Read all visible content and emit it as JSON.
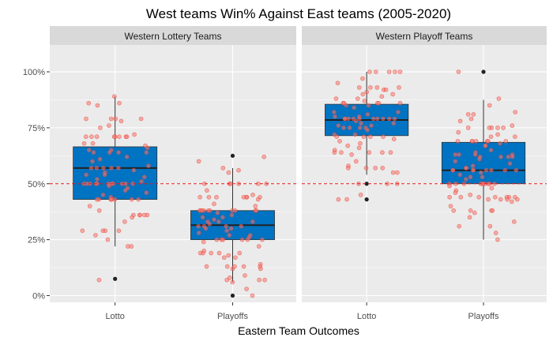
{
  "chart_data": {
    "type": "box",
    "title": "West teams Win% Against East teams (2005-2020)",
    "xlabel": "Eastern Team Outcomes",
    "ylabel": "",
    "ylim": [
      -0.03,
      1.12
    ],
    "yticks": [
      0,
      0.25,
      0.5,
      0.75,
      1.0
    ],
    "ytick_labels": [
      "0%",
      "25%",
      "50%",
      "75%",
      "100%"
    ],
    "categories": [
      "Lotto",
      "Playoffs"
    ],
    "reference_line": 0.5,
    "colors": {
      "panel_bg": "#ebebeb",
      "strip_bg": "#d9d9d9",
      "box_fill": "#0073c2",
      "point": "#f8766d",
      "ref_line": "#e41a1c",
      "grid": "#ffffff"
    },
    "panels": [
      {
        "strip_label": "Western Lottery Teams",
        "boxes": [
          {
            "category": "Lotto",
            "min": 0.22,
            "q1": 0.43,
            "median": 0.57,
            "q3": 0.665,
            "max": 0.89,
            "outliers": [
              0.075
            ],
            "points": [
              0.89,
              0.86,
              0.86,
              0.85,
              0.79,
              0.79,
              0.79,
              0.79,
              0.78,
              0.76,
              0.75,
              0.72,
              0.71,
              0.71,
              0.71,
              0.71,
              0.71,
              0.71,
              0.71,
              0.71,
              0.68,
              0.68,
              0.67,
              0.66,
              0.65,
              0.65,
              0.64,
              0.64,
              0.64,
              0.64,
              0.62,
              0.61,
              0.6,
              0.58,
              0.57,
              0.57,
              0.57,
              0.57,
              0.57,
              0.56,
              0.55,
              0.54,
              0.54,
              0.53,
              0.52,
              0.51,
              0.5,
              0.5,
              0.5,
              0.5,
              0.5,
              0.5,
              0.5,
              0.5,
              0.5,
              0.5,
              0.5,
              0.49,
              0.48,
              0.47,
              0.46,
              0.45,
              0.44,
              0.43,
              0.43,
              0.43,
              0.43,
              0.43,
              0.43,
              0.43,
              0.43,
              0.4,
              0.38,
              0.36,
              0.36,
              0.36,
              0.36,
              0.36,
              0.35,
              0.33,
              0.29,
              0.29,
              0.29,
              0.29,
              0.27,
              0.25,
              0.22,
              0.22,
              0.07
            ]
          },
          {
            "category": "Playoffs",
            "min": 0.06,
            "q1": 0.25,
            "median": 0.315,
            "q3": 0.38,
            "max": 0.57,
            "outliers": [
              0.625,
              0.0
            ],
            "points": [
              0.62,
              0.6,
              0.57,
              0.56,
              0.55,
              0.5,
              0.5,
              0.5,
              0.5,
              0.5,
              0.5,
              0.47,
              0.45,
              0.44,
              0.44,
              0.44,
              0.44,
              0.44,
              0.44,
              0.44,
              0.43,
              0.41,
              0.4,
              0.38,
              0.38,
              0.38,
              0.38,
              0.38,
              0.38,
              0.38,
              0.38,
              0.38,
              0.38,
              0.37,
              0.36,
              0.35,
              0.35,
              0.34,
              0.33,
              0.33,
              0.33,
              0.32,
              0.31,
              0.31,
              0.31,
              0.31,
              0.3,
              0.3,
              0.29,
              0.28,
              0.27,
              0.27,
              0.26,
              0.25,
              0.25,
              0.25,
              0.25,
              0.25,
              0.25,
              0.24,
              0.22,
              0.2,
              0.19,
              0.19,
              0.19,
              0.19,
              0.19,
              0.18,
              0.17,
              0.17,
              0.14,
              0.13,
              0.13,
              0.13,
              0.13,
              0.13,
              0.12,
              0.12,
              0.09,
              0.08,
              0.07,
              0.07,
              0.07,
              0.06,
              0.03,
              0.0
            ]
          }
        ]
      },
      {
        "strip_label": "Western Playoff Teams",
        "boxes": [
          {
            "category": "Lotto",
            "min": 0.54,
            "q1": 0.715,
            "median": 0.785,
            "q3": 0.855,
            "max": 1.0,
            "outliers": [
              0.5,
              0.43
            ],
            "points": [
              1.0,
              1.0,
              1.0,
              1.0,
              1.0,
              0.97,
              0.95,
              0.93,
              0.93,
              0.93,
              0.93,
              0.92,
              0.92,
              0.91,
              0.9,
              0.9,
              0.89,
              0.88,
              0.88,
              0.87,
              0.86,
              0.86,
              0.86,
              0.86,
              0.86,
              0.85,
              0.85,
              0.84,
              0.82,
              0.82,
              0.81,
              0.8,
              0.8,
              0.79,
              0.79,
              0.79,
              0.79,
              0.79,
              0.79,
              0.79,
              0.79,
              0.79,
              0.79,
              0.78,
              0.77,
              0.77,
              0.76,
              0.76,
              0.75,
              0.75,
              0.75,
              0.75,
              0.74,
              0.72,
              0.72,
              0.71,
              0.71,
              0.71,
              0.71,
              0.7,
              0.69,
              0.68,
              0.67,
              0.66,
              0.65,
              0.64,
              0.64,
              0.64,
              0.64,
              0.64,
              0.63,
              0.6,
              0.58,
              0.57,
              0.57,
              0.57,
              0.57,
              0.55,
              0.55,
              0.5,
              0.5,
              0.5,
              0.45,
              0.43,
              0.43
            ]
          },
          {
            "category": "Playoffs",
            "min": 0.25,
            "q1": 0.5,
            "median": 0.56,
            "q3": 0.685,
            "max": 0.875,
            "outliers": [
              1.0
            ],
            "points": [
              1.0,
              0.88,
              0.85,
              0.82,
              0.81,
              0.81,
              0.79,
              0.78,
              0.76,
              0.75,
              0.75,
              0.75,
              0.75,
              0.75,
              0.73,
              0.72,
              0.71,
              0.71,
              0.69,
              0.69,
              0.69,
              0.69,
              0.69,
              0.69,
              0.69,
              0.68,
              0.67,
              0.67,
              0.65,
              0.64,
              0.63,
              0.63,
              0.63,
              0.63,
              0.62,
              0.62,
              0.62,
              0.62,
              0.61,
              0.6,
              0.59,
              0.58,
              0.57,
              0.57,
              0.56,
              0.56,
              0.56,
              0.56,
              0.56,
              0.56,
              0.56,
              0.56,
              0.55,
              0.54,
              0.53,
              0.53,
              0.52,
              0.5,
              0.5,
              0.5,
              0.5,
              0.5,
              0.5,
              0.5,
              0.5,
              0.5,
              0.5,
              0.49,
              0.48,
              0.47,
              0.46,
              0.45,
              0.44,
              0.44,
              0.44,
              0.44,
              0.44,
              0.44,
              0.44,
              0.43,
              0.43,
              0.43,
              0.43,
              0.42,
              0.4,
              0.38,
              0.38,
              0.38,
              0.38,
              0.37,
              0.35,
              0.33,
              0.31,
              0.31,
              0.28,
              0.25
            ]
          }
        ]
      }
    ]
  }
}
